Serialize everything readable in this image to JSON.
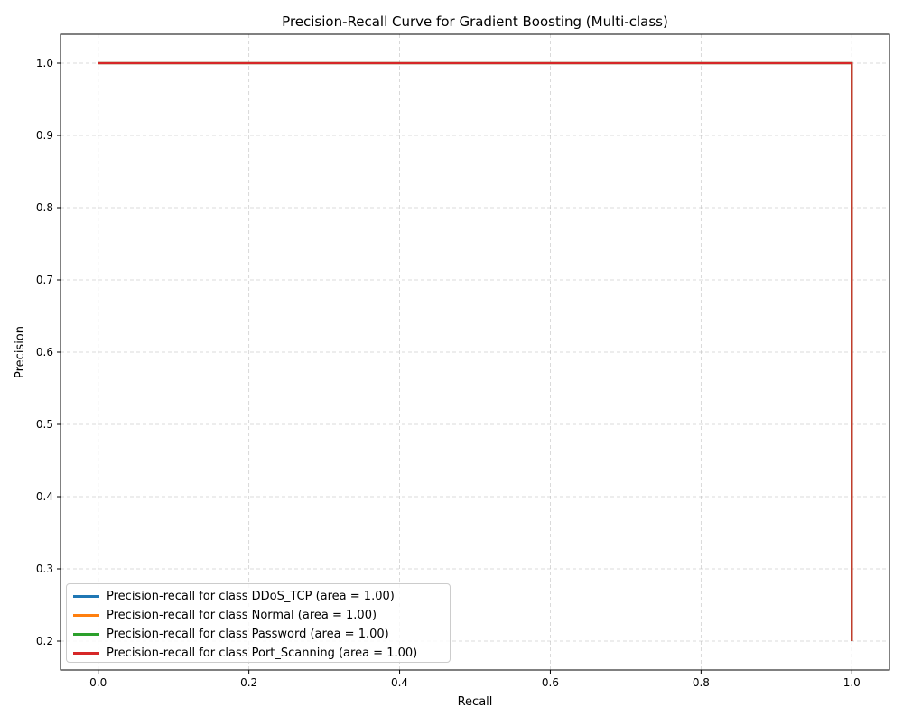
{
  "chart_data": {
    "type": "line",
    "title": "Precision-Recall Curve for Gradient Boosting (Multi-class)",
    "xlabel": "Recall",
    "ylabel": "Precision",
    "xlim": [
      -0.05,
      1.05
    ],
    "ylim": [
      0.16,
      1.04
    ],
    "xticks": [
      "0.0",
      "0.2",
      "0.4",
      "0.6",
      "0.8",
      "1.0"
    ],
    "yticks": [
      "0.2",
      "0.3",
      "0.4",
      "0.5",
      "0.6",
      "0.7",
      "0.8",
      "0.9",
      "1.0"
    ],
    "grid": true,
    "legend_position": "lower-left",
    "series": [
      {
        "name": "Precision-recall for class DDoS_TCP (area = 1.00)",
        "color": "#1f77b4",
        "points": [
          [
            1.0,
            0.2
          ],
          [
            1.0,
            1.0
          ],
          [
            0.0,
            1.0
          ]
        ]
      },
      {
        "name": "Precision-recall for class Normal (area = 1.00)",
        "color": "#ff7f0e",
        "points": [
          [
            1.0,
            0.2
          ],
          [
            1.0,
            1.0
          ],
          [
            0.0,
            1.0
          ]
        ]
      },
      {
        "name": "Precision-recall for class Password (area = 1.00)",
        "color": "#2ca02c",
        "points": [
          [
            1.0,
            0.2
          ],
          [
            1.0,
            1.0
          ],
          [
            0.0,
            1.0
          ]
        ]
      },
      {
        "name": "Precision-recall for class Port_Scanning (area = 1.00)",
        "color": "#d62728",
        "points": [
          [
            1.0,
            0.2
          ],
          [
            1.0,
            1.0
          ],
          [
            0.0,
            1.0
          ]
        ]
      }
    ]
  }
}
